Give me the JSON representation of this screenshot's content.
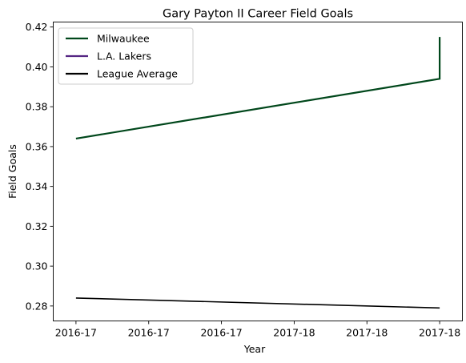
{
  "chart_data": {
    "type": "line",
    "title": "Gary Payton II Career Field Goals",
    "xlabel": "Year",
    "ylabel": "Field Goals",
    "x_tick_labels": [
      "2016-17",
      "2016-17",
      "2016-17",
      "2017-18",
      "2017-18",
      "2017-18"
    ],
    "x_range": [
      -0.125,
      2.125
    ],
    "ylim": [
      0.2725,
      0.4225
    ],
    "y_ticks": [
      0.28,
      0.3,
      0.32,
      0.34,
      0.36,
      0.38,
      0.4,
      0.42
    ],
    "grid": false,
    "legend_position": "top-left",
    "series": [
      {
        "name": "Milwaukee",
        "color": "#00471b",
        "points": [
          [
            0,
            0.364
          ],
          [
            2,
            0.394
          ],
          [
            2,
            0.415
          ]
        ]
      },
      {
        "name": "L.A. Lakers",
        "color": "#552583",
        "points": []
      },
      {
        "name": "League Average",
        "color": "#000000",
        "points": [
          [
            0,
            0.284
          ],
          [
            2,
            0.279
          ]
        ]
      }
    ]
  }
}
